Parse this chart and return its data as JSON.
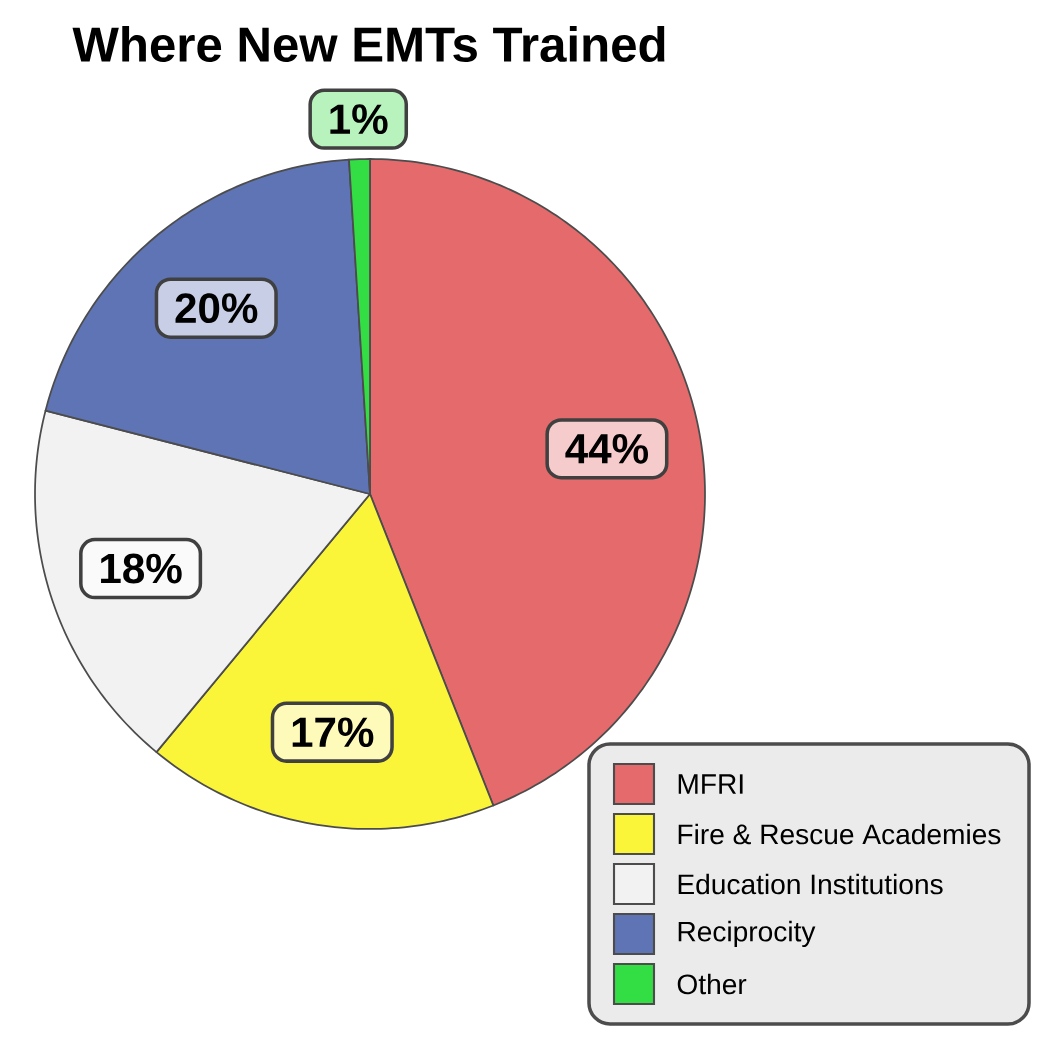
{
  "chart_data": {
    "type": "pie",
    "title": "Where New EMTs Trained",
    "categories": [
      "MFRI",
      "Fire & Rescue Academies",
      "Education Institutions",
      "Reciprocity",
      "Other"
    ],
    "values": [
      44,
      17,
      18,
      20,
      1
    ],
    "colors": [
      "#e46a6c",
      "#fbf53a",
      "#f2f2f2",
      "#5f74b4",
      "#33dd44"
    ],
    "value_labels": [
      "44%",
      "17%",
      "18%",
      "20%",
      "1%"
    ],
    "legend": "bottom right"
  }
}
